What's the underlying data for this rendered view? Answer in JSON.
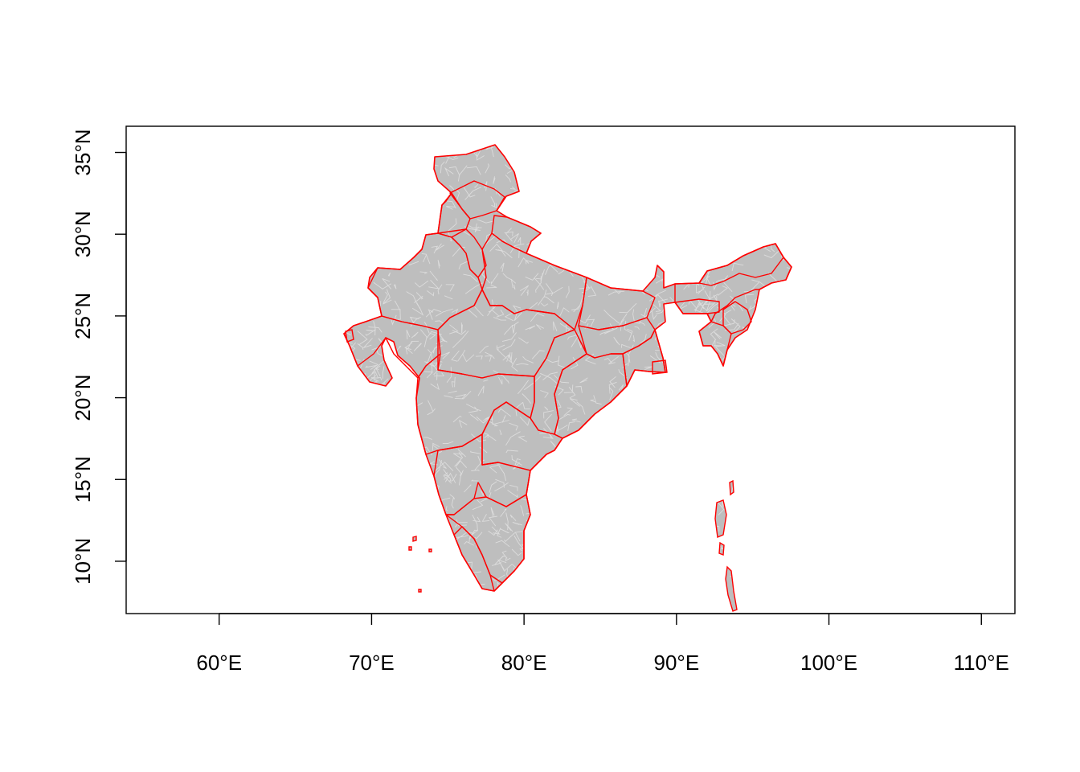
{
  "chart_data": {
    "type": "map",
    "title": "",
    "xlabel": "",
    "ylabel": "",
    "xlim": [
      53.9,
      112.2
    ],
    "ylim": [
      6.8,
      36.6
    ],
    "x_ticks": [
      {
        "value": 60,
        "label": "60°E"
      },
      {
        "value": 70,
        "label": "70°E"
      },
      {
        "value": 80,
        "label": "80°E"
      },
      {
        "value": 90,
        "label": "90°E"
      },
      {
        "value": 100,
        "label": "100°E"
      },
      {
        "value": 110,
        "label": "110°E"
      }
    ],
    "y_ticks": [
      {
        "value": 10,
        "label": "10°N"
      },
      {
        "value": 15,
        "label": "15°N"
      },
      {
        "value": 20,
        "label": "20°N"
      },
      {
        "value": 25,
        "label": "25°N"
      },
      {
        "value": 30,
        "label": "30°N"
      },
      {
        "value": 35,
        "label": "35°N"
      }
    ],
    "layers": [
      {
        "name": "",
        "role": "district polygons",
        "fill": "#bebebe",
        "stroke": "#bebebe"
      },
      {
        "name": "",
        "role": "state boundaries",
        "fill": "none",
        "stroke": "#ff0000"
      }
    ],
    "grid": false,
    "legend": "none"
  }
}
